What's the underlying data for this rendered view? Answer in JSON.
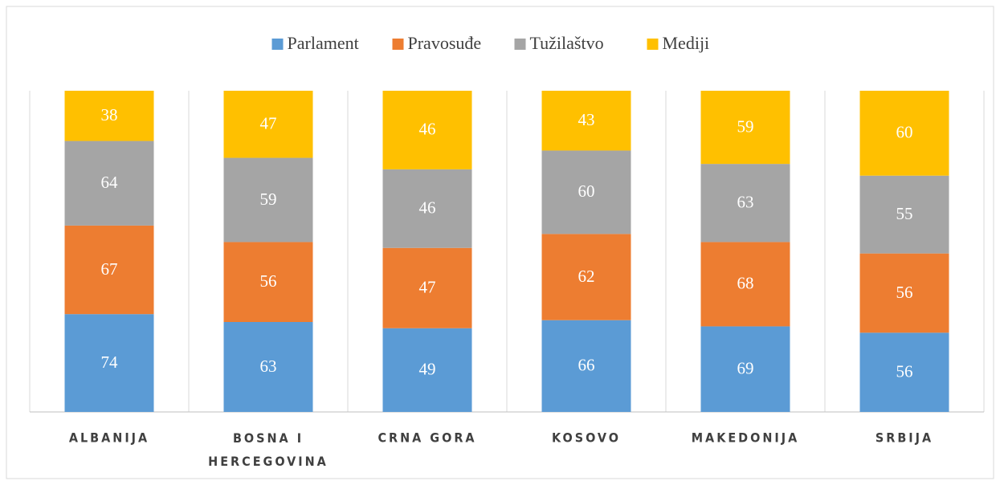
{
  "chart_data": {
    "type": "bar",
    "stacked": "percent",
    "categories": [
      "ALBANIJA",
      "BOSNA I HERCEGOVINA",
      "CRNA GORA",
      "KOSOVO",
      "MAKEDONIJA",
      "SRBIJA"
    ],
    "series": [
      {
        "name": "Parlament",
        "color": "#5b9bd5",
        "values": [
          74,
          63,
          49,
          66,
          69,
          56
        ]
      },
      {
        "name": "Pravosuđe",
        "color": "#ed7d31",
        "values": [
          67,
          56,
          47,
          62,
          68,
          56
        ]
      },
      {
        "name": "Tužilaštvo",
        "color": "#a5a5a5",
        "values": [
          64,
          59,
          46,
          60,
          63,
          55
        ]
      },
      {
        "name": "Mediji",
        "color": "#ffc000",
        "values": [
          38,
          47,
          46,
          43,
          59,
          60
        ]
      }
    ],
    "legend": "top"
  }
}
